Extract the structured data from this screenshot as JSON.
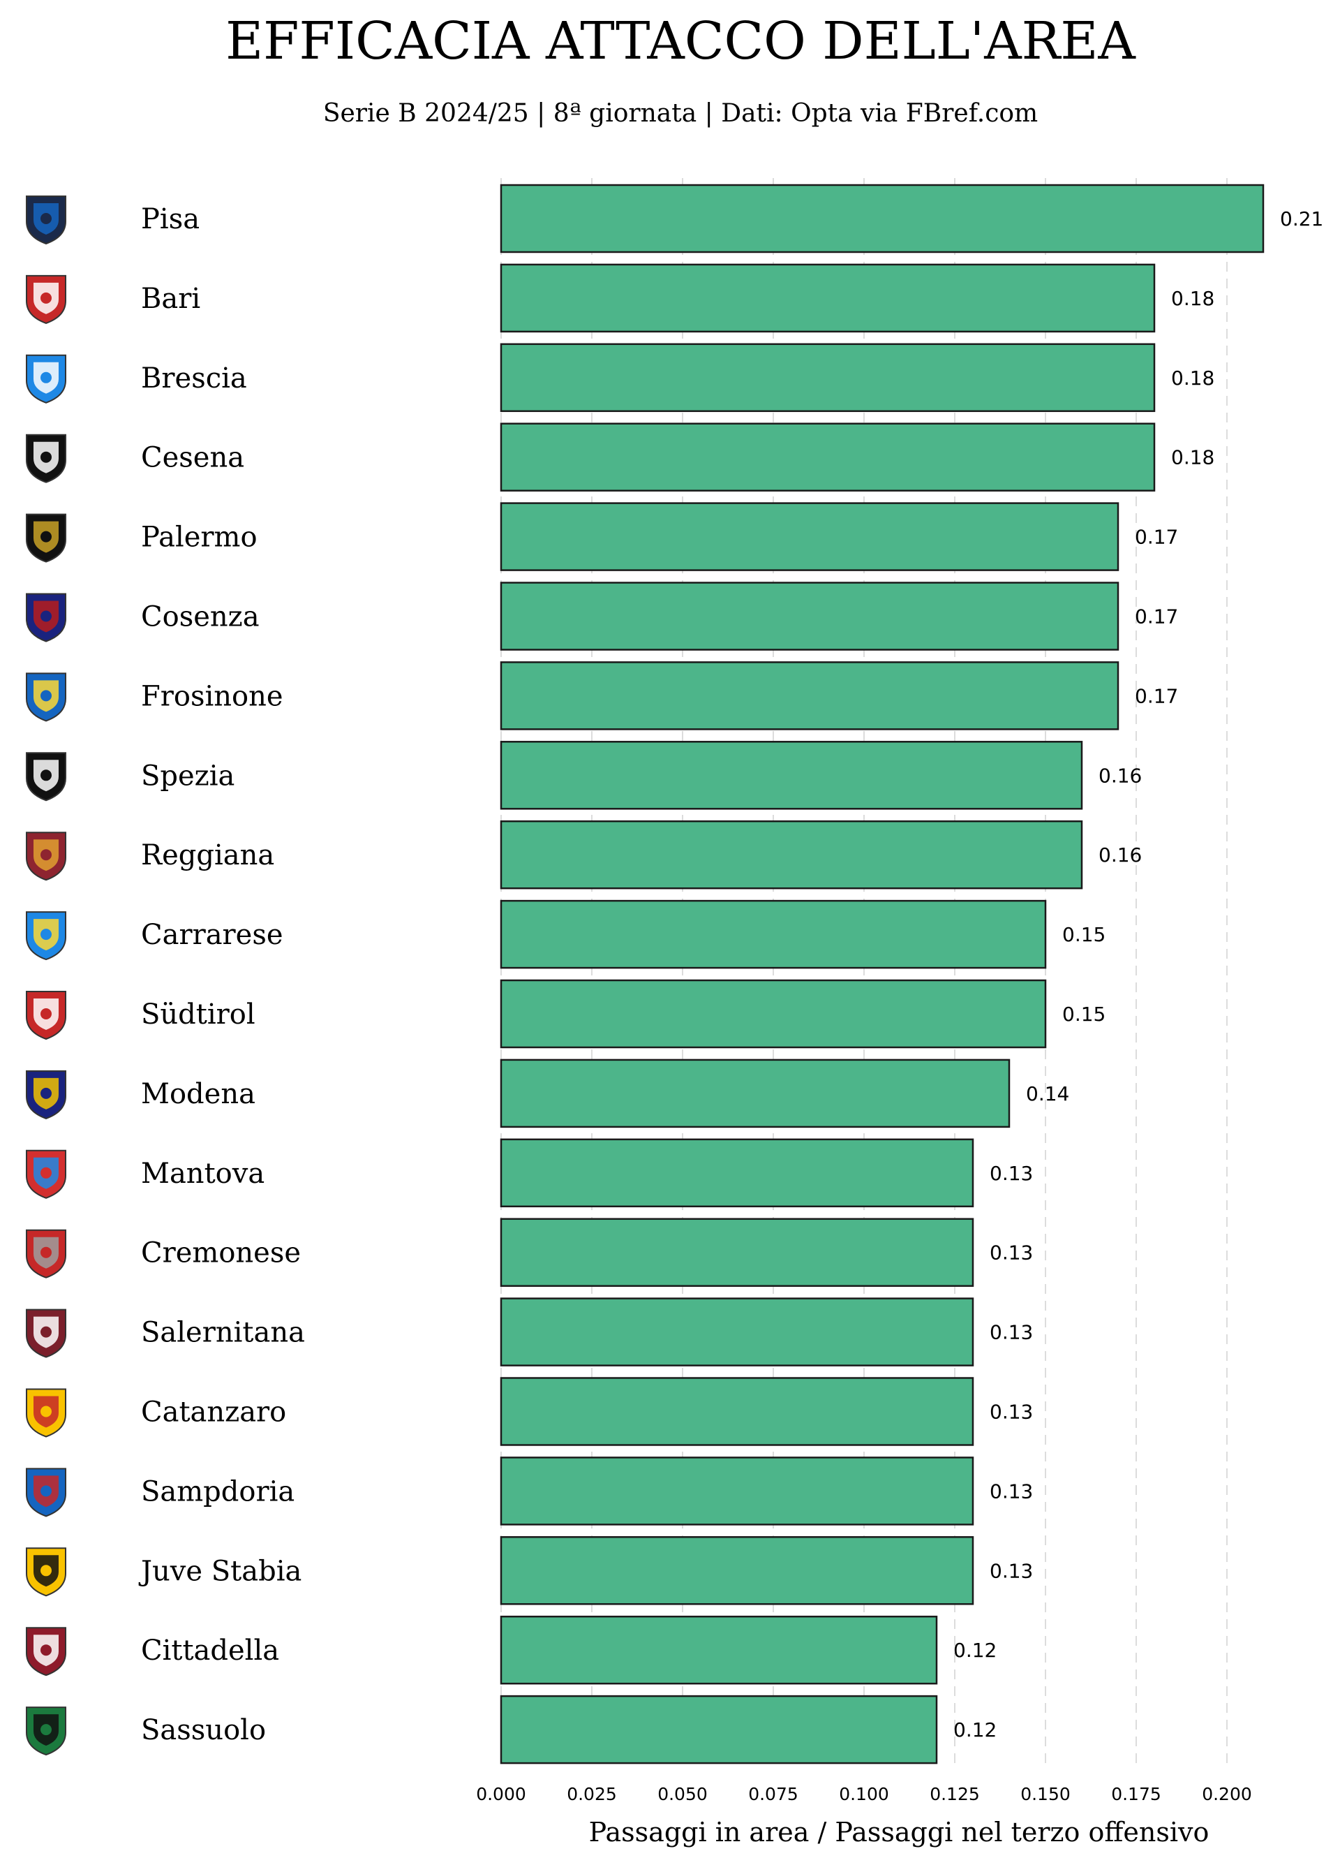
{
  "chart_data": {
    "type": "bar",
    "orientation": "horizontal",
    "title": "EFFICACIA ATTACCO DELL'AREA",
    "subtitle": "Serie B 2024/25 | 8ª giornata | Dati: Opta via FBref.com",
    "xlabel": "Passaggi in area / Passaggi nel terzo offensivo",
    "ylabel": "",
    "xlim": [
      0,
      0.21
    ],
    "x_ticks": [
      "0.000",
      "0.025",
      "0.050",
      "0.075",
      "0.100",
      "0.125",
      "0.150",
      "0.175",
      "0.200"
    ],
    "grid": "vertical dashed",
    "bar_color": "#4db58a",
    "bar_edge_color": "#1a1a1a",
    "categories": [
      "Pisa",
      "Bari",
      "Brescia",
      "Cesena",
      "Palermo",
      "Cosenza",
      "Frosinone",
      "Spezia",
      "Reggiana",
      "Carrarese",
      "Südtirol",
      "Modena",
      "Mantova",
      "Cremonese",
      "Salernitana",
      "Catanzaro",
      "Sampdoria",
      "Juve Stabia",
      "Cittadella",
      "Sassuolo"
    ],
    "values": [
      0.21,
      0.18,
      0.18,
      0.18,
      0.17,
      0.17,
      0.17,
      0.16,
      0.16,
      0.15,
      0.15,
      0.14,
      0.13,
      0.13,
      0.13,
      0.13,
      0.13,
      0.13,
      0.12,
      0.12
    ],
    "value_labels": [
      "0.21",
      "0.18",
      "0.18",
      "0.18",
      "0.17",
      "0.17",
      "0.17",
      "0.16",
      "0.16",
      "0.15",
      "0.15",
      "0.14",
      "0.13",
      "0.13",
      "0.13",
      "0.13",
      "0.13",
      "0.13",
      "0.12",
      "0.12"
    ],
    "team_badges": [
      {
        "icon": "pisa-badge-icon",
        "colors": [
          "#1b2a4a",
          "#1565c0"
        ]
      },
      {
        "icon": "bari-badge-icon",
        "colors": [
          "#c62828",
          "#ffffff"
        ]
      },
      {
        "icon": "brescia-badge-icon",
        "colors": [
          "#1e88e5",
          "#ffffff"
        ]
      },
      {
        "icon": "cesena-badge-icon",
        "colors": [
          "#111111",
          "#ffffff"
        ]
      },
      {
        "icon": "palermo-badge-icon",
        "colors": [
          "#111111",
          "#c9a227"
        ]
      },
      {
        "icon": "cosenza-badge-icon",
        "colors": [
          "#1a237e",
          "#b71c1c"
        ]
      },
      {
        "icon": "frosinone-badge-icon",
        "colors": [
          "#1565c0",
          "#fdd835"
        ]
      },
      {
        "icon": "spezia-badge-icon",
        "colors": [
          "#111111",
          "#ffffff"
        ]
      },
      {
        "icon": "reggiana-badge-icon",
        "colors": [
          "#8e2430",
          "#e0a030"
        ]
      },
      {
        "icon": "carrarese-badge-icon",
        "colors": [
          "#1e88e5",
          "#fdd835"
        ]
      },
      {
        "icon": "sudtirol-badge-icon",
        "colors": [
          "#c62828",
          "#ffffff"
        ]
      },
      {
        "icon": "modena-badge-icon",
        "colors": [
          "#1a237e",
          "#f2c200"
        ]
      },
      {
        "icon": "mantova-badge-icon",
        "colors": [
          "#d32f2f",
          "#1e88e5"
        ]
      },
      {
        "icon": "cremonese-badge-icon",
        "colors": [
          "#c62828",
          "#9e9e9e"
        ]
      },
      {
        "icon": "salernitana-badge-icon",
        "colors": [
          "#7b1f2b",
          "#ffffff"
        ]
      },
      {
        "icon": "catanzaro-badge-icon",
        "colors": [
          "#f9c200",
          "#c62828"
        ]
      },
      {
        "icon": "sampdoria-badge-icon",
        "colors": [
          "#1565c0",
          "#c62828"
        ]
      },
      {
        "icon": "juve-stabia-badge-icon",
        "colors": [
          "#f9c200",
          "#111111"
        ]
      },
      {
        "icon": "cittadella-badge-icon",
        "colors": [
          "#8e1b2b",
          "#ffffff"
        ]
      },
      {
        "icon": "sassuolo-badge-icon",
        "colors": [
          "#1b7a3e",
          "#111111"
        ]
      }
    ]
  }
}
